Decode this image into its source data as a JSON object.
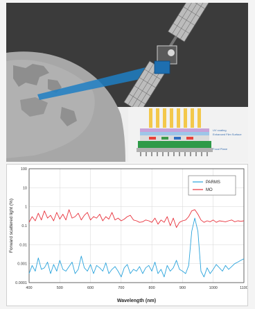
{
  "illustration": {
    "sky_color": "#3b3b3b",
    "earth_color": "#a7a7a7",
    "beam_color": "#1f7fc4",
    "sensor_callouts": [
      "UV coating",
      "Enhanced Film Surface",
      "Focal Plane"
    ],
    "icons": [
      "satellite-icon",
      "earth-icon",
      "sensor-stack-icon"
    ]
  },
  "chart_data": {
    "type": "line",
    "title": "",
    "xlabel": "Wavelength (nm)",
    "ylabel": "Forward scattered light (%)",
    "xlim": [
      400,
      1100
    ],
    "ylim": [
      0.0001,
      100
    ],
    "yscale": "log",
    "grid": true,
    "legend_position": "top-right",
    "xticks": [
      "400",
      "500",
      "600",
      "700",
      "800",
      "900",
      "1000",
      "1100"
    ],
    "yticks": [
      "0.0001",
      "0.001",
      "0.01",
      "0.1",
      "1",
      "10",
      "100"
    ],
    "series": [
      {
        "name": "PARMS",
        "color": "#29a3dc",
        "x": [
          400,
          410,
          420,
          430,
          440,
          450,
          460,
          470,
          480,
          490,
          500,
          510,
          520,
          530,
          540,
          550,
          560,
          570,
          580,
          590,
          600,
          610,
          620,
          630,
          640,
          650,
          660,
          670,
          680,
          690,
          700,
          710,
          720,
          730,
          740,
          750,
          760,
          770,
          780,
          790,
          800,
          810,
          820,
          830,
          840,
          850,
          860,
          870,
          880,
          890,
          900,
          910,
          920,
          930,
          940,
          950,
          960,
          970,
          980,
          990,
          1000,
          1010,
          1020,
          1030,
          1040,
          1050,
          1060,
          1070,
          1080,
          1090,
          1100
        ],
        "y": [
          0.0003,
          0.0008,
          0.0004,
          0.002,
          0.0005,
          0.0006,
          0.0012,
          0.0003,
          0.0009,
          0.0004,
          0.0015,
          0.0005,
          0.0004,
          0.0007,
          0.0012,
          0.0003,
          0.0005,
          0.0025,
          0.0006,
          0.0004,
          0.0009,
          0.0003,
          0.0008,
          0.0006,
          0.0004,
          0.0011,
          0.0003,
          0.0005,
          0.0007,
          0.0004,
          0.0002,
          0.0006,
          0.0009,
          0.0003,
          0.0005,
          0.0004,
          0.0007,
          0.0003,
          0.0006,
          0.0008,
          0.0004,
          0.0012,
          0.0003,
          0.0005,
          0.0002,
          0.0008,
          0.0004,
          0.0006,
          0.0015,
          0.0005,
          0.0004,
          0.0003,
          0.0008,
          0.05,
          0.25,
          0.05,
          0.0004,
          0.0002,
          0.0006,
          0.0003,
          0.0005,
          0.0009,
          0.0006,
          0.0004,
          0.0008,
          0.0005,
          0.0007,
          0.001,
          0.0012,
          0.0015,
          0.0018
        ]
      },
      {
        "name": "MO",
        "color": "#e8303a",
        "x": [
          400,
          410,
          420,
          430,
          440,
          450,
          460,
          470,
          480,
          490,
          500,
          510,
          520,
          530,
          540,
          550,
          560,
          570,
          580,
          590,
          600,
          610,
          620,
          630,
          640,
          650,
          660,
          670,
          680,
          690,
          700,
          710,
          720,
          730,
          740,
          750,
          760,
          770,
          780,
          790,
          800,
          810,
          820,
          830,
          840,
          850,
          860,
          870,
          880,
          890,
          900,
          910,
          920,
          930,
          940,
          950,
          960,
          970,
          980,
          990,
          1000,
          1010,
          1020,
          1030,
          1040,
          1050,
          1060,
          1070,
          1080,
          1090,
          1100
        ],
        "y": [
          0.15,
          0.3,
          0.18,
          0.45,
          0.2,
          0.6,
          0.25,
          0.35,
          0.18,
          0.5,
          0.22,
          0.4,
          0.2,
          0.7,
          0.25,
          0.3,
          0.45,
          0.2,
          0.35,
          0.5,
          0.2,
          0.3,
          0.25,
          0.4,
          0.18,
          0.3,
          0.22,
          0.5,
          0.2,
          0.25,
          0.18,
          0.22,
          0.3,
          0.35,
          0.2,
          0.18,
          0.15,
          0.16,
          0.2,
          0.18,
          0.15,
          0.25,
          0.12,
          0.2,
          0.15,
          0.3,
          0.1,
          0.25,
          0.08,
          0.15,
          0.18,
          0.2,
          0.3,
          0.6,
          0.7,
          0.4,
          0.2,
          0.15,
          0.18,
          0.16,
          0.2,
          0.15,
          0.18,
          0.17,
          0.16,
          0.18,
          0.2,
          0.16,
          0.18,
          0.17,
          0.18
        ]
      }
    ]
  }
}
